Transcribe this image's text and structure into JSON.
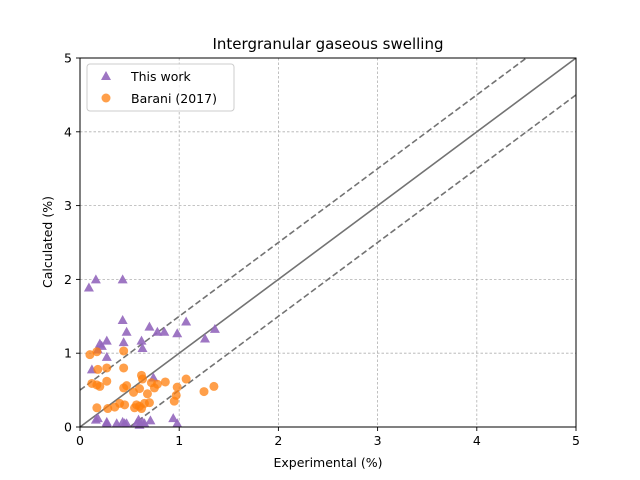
{
  "chart_data": {
    "type": "scatter",
    "title": "Intergranular gaseous swelling",
    "xlabel": "Experimental (%)",
    "ylabel": "Calculated (%)",
    "xlim": [
      0,
      5
    ],
    "ylim": [
      0,
      5
    ],
    "xticks": [
      "0",
      "1",
      "2",
      "3",
      "4",
      "5"
    ],
    "yticks": [
      "0",
      "1",
      "2",
      "3",
      "4",
      "5"
    ],
    "grid": true,
    "legend_position": "top-left",
    "reference_lines": [
      {
        "style": "solid",
        "slope": 1,
        "intercept": 0
      },
      {
        "style": "dashed",
        "slope": 1,
        "intercept": 0.5
      },
      {
        "style": "dashed",
        "slope": 1,
        "intercept": -0.5
      }
    ],
    "series": [
      {
        "name": "This work",
        "marker": "triangle",
        "color": "#9467bd",
        "points": [
          [
            0.09,
            1.89
          ],
          [
            0.16,
            2.0
          ],
          [
            0.43,
            2.0
          ],
          [
            0.12,
            0.78
          ],
          [
            0.18,
            1.05
          ],
          [
            0.2,
            1.13
          ],
          [
            0.22,
            1.1
          ],
          [
            0.27,
            1.17
          ],
          [
            0.27,
            0.95
          ],
          [
            0.43,
            1.45
          ],
          [
            0.44,
            1.15
          ],
          [
            0.47,
            1.29
          ],
          [
            0.62,
            1.17
          ],
          [
            0.63,
            1.07
          ],
          [
            0.7,
            1.36
          ],
          [
            0.78,
            1.29
          ],
          [
            0.85,
            1.29
          ],
          [
            0.98,
            1.27
          ],
          [
            1.07,
            1.43
          ],
          [
            1.26,
            1.2
          ],
          [
            1.36,
            1.33
          ],
          [
            0.74,
            0.67
          ],
          [
            0.16,
            0.1
          ],
          [
            0.18,
            0.12
          ],
          [
            0.27,
            0.07
          ],
          [
            0.27,
            0.05
          ],
          [
            0.37,
            0.05
          ],
          [
            0.43,
            0.07
          ],
          [
            0.45,
            0.05
          ],
          [
            0.57,
            0.05
          ],
          [
            0.59,
            0.1
          ],
          [
            0.63,
            0.07
          ],
          [
            0.65,
            0.05
          ],
          [
            0.71,
            0.09
          ],
          [
            0.94,
            0.12
          ],
          [
            0.98,
            0.05
          ],
          [
            0.47,
            0.05
          ],
          [
            0.6,
            0.03
          ]
        ]
      },
      {
        "name": "Barani (2017)",
        "marker": "circle",
        "color": "#ff7f0e",
        "points": [
          [
            0.1,
            0.98
          ],
          [
            0.17,
            1.02
          ],
          [
            0.12,
            0.59
          ],
          [
            0.17,
            0.57
          ],
          [
            0.2,
            0.55
          ],
          [
            0.18,
            0.78
          ],
          [
            0.27,
            0.8
          ],
          [
            0.27,
            0.62
          ],
          [
            0.17,
            0.26
          ],
          [
            0.28,
            0.25
          ],
          [
            0.35,
            0.27
          ],
          [
            0.4,
            0.32
          ],
          [
            0.45,
            0.3
          ],
          [
            0.44,
            0.8
          ],
          [
            0.44,
            1.03
          ],
          [
            0.44,
            0.53
          ],
          [
            0.47,
            0.56
          ],
          [
            0.54,
            0.47
          ],
          [
            0.55,
            0.26
          ],
          [
            0.57,
            0.3
          ],
          [
            0.6,
            0.28
          ],
          [
            0.6,
            0.52
          ],
          [
            0.62,
            0.7
          ],
          [
            0.63,
            0.65
          ],
          [
            0.65,
            0.32
          ],
          [
            0.68,
            0.45
          ],
          [
            0.7,
            0.33
          ],
          [
            0.72,
            0.6
          ],
          [
            0.75,
            0.53
          ],
          [
            0.78,
            0.58
          ],
          [
            0.86,
            0.61
          ],
          [
            0.95,
            0.35
          ],
          [
            0.97,
            0.43
          ],
          [
            0.98,
            0.54
          ],
          [
            1.07,
            0.65
          ],
          [
            1.25,
            0.48
          ],
          [
            1.35,
            0.55
          ],
          [
            0.62,
            0.25
          ]
        ]
      }
    ]
  }
}
